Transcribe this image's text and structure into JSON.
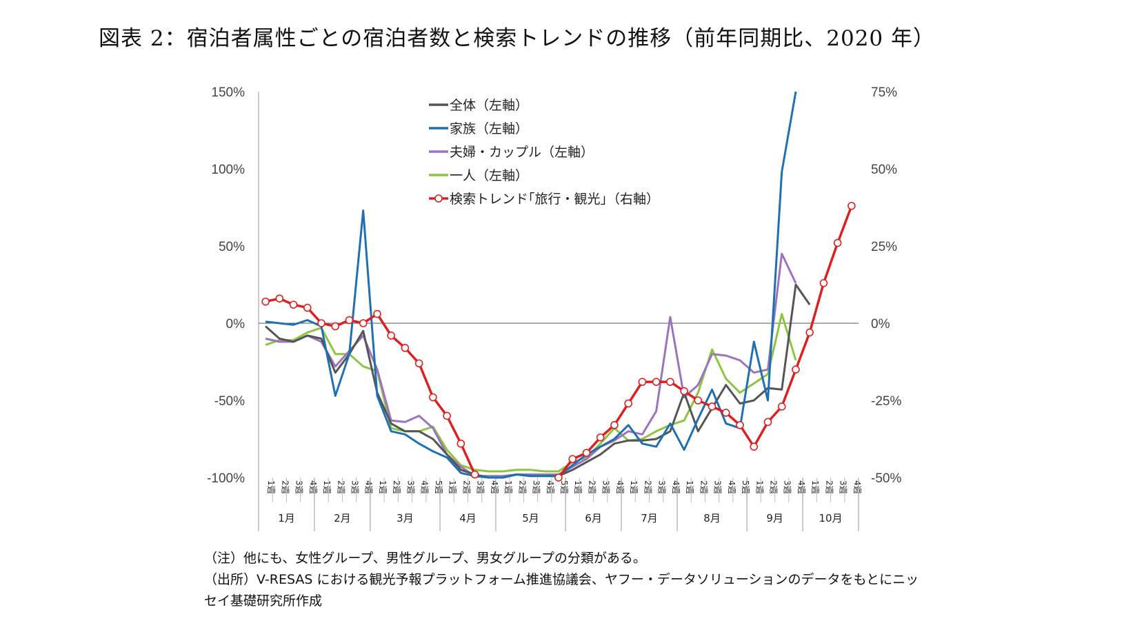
{
  "title": "図表 2：宿泊者属性ごとの宿泊者数と検索トレンドの推移（前年同期比、2020 年）",
  "notes": [
    "（注）他にも、女性グループ、男性グループ、男女グループの分類がある。",
    "（出所）V-RESAS における観光予報プラットフォーム推進協議会、ヤフー・データソリューションのデータをもとにニッ",
    "セイ基礎研究所作成"
  ],
  "chart_data": {
    "type": "line",
    "left_axis": {
      "ticks": [
        "150%",
        "100%",
        "50%",
        "0%",
        "-50%",
        "-100%"
      ],
      "range": [
        -100,
        150
      ]
    },
    "right_axis": {
      "ticks": [
        "75%",
        "50%",
        "25%",
        "0%",
        "-25%",
        "-50%"
      ],
      "range": [
        -50,
        75
      ]
    },
    "grid": false,
    "legend_position": "top-center",
    "months": [
      {
        "label": "1月",
        "weeks": [
          "1週",
          "2週",
          "3週",
          "4週"
        ]
      },
      {
        "label": "2月",
        "weeks": [
          "1週",
          "2週",
          "3週",
          "4週"
        ]
      },
      {
        "label": "3月",
        "weeks": [
          "1週",
          "2週",
          "3週",
          "4週",
          "5週"
        ]
      },
      {
        "label": "4月",
        "weeks": [
          "1週",
          "2週",
          "3週",
          "4週"
        ]
      },
      {
        "label": "5月",
        "weeks": [
          "1週",
          "2週",
          "3週",
          "4週",
          "5週"
        ]
      },
      {
        "label": "6月",
        "weeks": [
          "1週",
          "2週",
          "3週",
          "4週"
        ]
      },
      {
        "label": "7月",
        "weeks": [
          "1週",
          "2週",
          "3週",
          "4週"
        ]
      },
      {
        "label": "8月",
        "weeks": [
          "1週",
          "2週",
          "3週",
          "4週",
          "5週"
        ]
      },
      {
        "label": "9月",
        "weeks": [
          "1週",
          "2週",
          "3週",
          "4週"
        ]
      },
      {
        "label": "10月",
        "weeks": [
          "1週",
          "2週",
          "3週",
          "4週"
        ]
      }
    ],
    "series": [
      {
        "name": "全体（左軸）",
        "axis": "left",
        "color": "#555555",
        "marker": "none",
        "values": [
          -2,
          -10,
          -12,
          -8,
          -10,
          -32,
          -20,
          -5,
          -45,
          -65,
          -70,
          -70,
          -75,
          -85,
          -95,
          -98,
          -100,
          -100,
          -98,
          -99,
          -99,
          -99,
          -95,
          -90,
          -85,
          -78,
          -76,
          -76,
          -75,
          -70,
          -45,
          -70,
          -55,
          -40,
          -52,
          -50,
          -42,
          -43,
          25,
          12
        ]
      },
      {
        "name": "家族（左軸）",
        "axis": "left",
        "color": "#1F6FB5",
        "marker": "none",
        "values": [
          1,
          0,
          -1,
          2,
          -2,
          -47,
          -20,
          73,
          -47,
          -70,
          -72,
          -78,
          -83,
          -87,
          -97,
          -99,
          -100,
          -100,
          -98,
          -99,
          -99,
          -99,
          -92,
          -85,
          -80,
          -75,
          -66,
          -78,
          -80,
          -65,
          -82,
          -62,
          -43,
          -65,
          -68,
          -12,
          -50,
          98,
          150
        ]
      },
      {
        "name": "夫婦・カップル（左軸）",
        "axis": "left",
        "color": "#9B73BE",
        "marker": "none",
        "values": [
          -10,
          -12,
          -12,
          -8,
          -12,
          -28,
          -18,
          -8,
          -30,
          -63,
          -64,
          -60,
          -68,
          -85,
          -93,
          -99,
          -99,
          -99,
          -98,
          -98,
          -98,
          -98,
          -93,
          -88,
          -80,
          -76,
          -70,
          -72,
          -57,
          4,
          -48,
          -40,
          -20,
          -21,
          -24,
          -32,
          -30,
          45,
          26
        ]
      },
      {
        "name": "一人（左軸）",
        "axis": "left",
        "color": "#8CC63F",
        "marker": "none",
        "values": [
          -14,
          -11,
          -11,
          -6,
          -3,
          -20,
          -20,
          -28,
          -31,
          -68,
          -70,
          -70,
          -67,
          -82,
          -92,
          -95,
          -96,
          -96,
          -95,
          -95,
          -96,
          -96,
          -90,
          -87,
          -78,
          -68,
          -76,
          -75,
          -70,
          -66,
          -63,
          -45,
          -17,
          -36,
          -45,
          -39,
          -33,
          6,
          -24
        ]
      },
      {
        "name": "検索トレンド｢旅行・観光｣（右軸）",
        "axis": "right",
        "color": "#DD1F1F",
        "marker": "circle",
        "values": [
          7,
          8,
          6,
          5,
          0,
          -1,
          1,
          0,
          3,
          -4,
          -8,
          -13,
          -24,
          -30,
          -39,
          -49,
          null,
          null,
          null,
          null,
          null,
          -50,
          -44,
          -42,
          -37,
          -33,
          -26,
          -19,
          -19,
          -19,
          -22,
          -25,
          -27,
          -29,
          -33,
          -40,
          -32,
          -27,
          -15,
          -3,
          13,
          26,
          38
        ]
      }
    ]
  }
}
